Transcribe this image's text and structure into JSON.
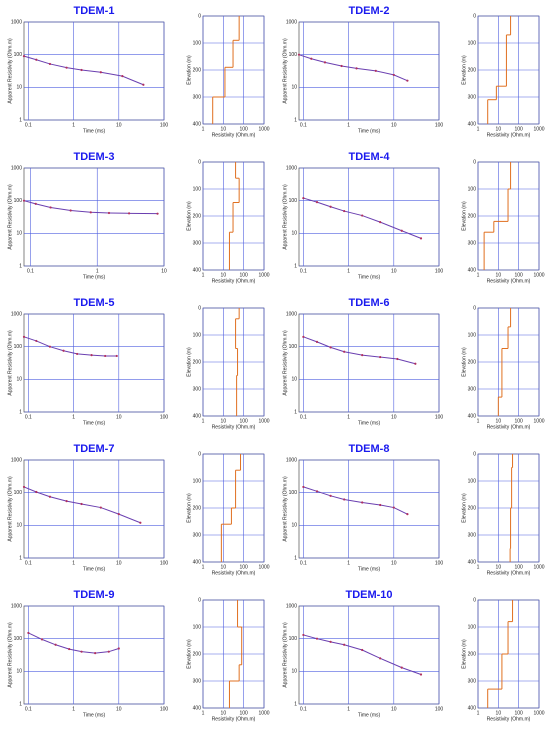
{
  "chart_data": [
    {
      "type": "sounding",
      "title": "TDEM-1",
      "xlabel": "Time (ms)",
      "ylabel": "Apparent Resistivity (Ohm.m)",
      "xscale": "log",
      "yscale": "log",
      "xlim": [
        0.08,
        100
      ],
      "xticks": [
        0.1,
        1,
        10,
        100
      ],
      "ylim": [
        1,
        1000
      ],
      "yticks": [
        1,
        10,
        100,
        1000
      ],
      "grid": true,
      "color": "#b03060",
      "x": [
        0.08,
        0.15,
        0.3,
        0.7,
        1.5,
        4,
        12,
        35
      ],
      "values": [
        90,
        70,
        52,
        40,
        34,
        29,
        22,
        12
      ]
    },
    {
      "type": "model",
      "xlabel": "Resistivity (Ohm.m)",
      "ylabel": "Elevation (m)",
      "xscale": "log",
      "yinvert": true,
      "xlim": [
        1,
        1000
      ],
      "xticks": [
        1,
        10,
        100,
        1000
      ],
      "ylim": [
        0,
        400
      ],
      "yticks": [
        0,
        100,
        200,
        300,
        400
      ],
      "grid": true,
      "color": "#e07020",
      "resistivity": [
        60,
        30,
        12,
        3
      ],
      "depths": [
        90,
        190,
        300
      ]
    },
    {
      "type": "sounding",
      "title": "TDEM-2",
      "xlabel": "Time (ms)",
      "ylabel": "Apparent Resistivity (Ohm.m)",
      "xscale": "log",
      "yscale": "log",
      "xlim": [
        0.08,
        100
      ],
      "xticks": [
        0.1,
        1,
        10,
        100
      ],
      "ylim": [
        1,
        1000
      ],
      "yticks": [
        1,
        10,
        100,
        1000
      ],
      "grid": true,
      "color": "#b03060",
      "x": [
        0.08,
        0.15,
        0.3,
        0.7,
        1.5,
        4,
        10,
        20
      ],
      "values": [
        100,
        75,
        58,
        45,
        38,
        32,
        24,
        16
      ]
    },
    {
      "type": "model",
      "xlabel": "Resistivity (Ohm.m)",
      "ylabel": "Elevation (m)",
      "xscale": "log",
      "yinvert": true,
      "xlim": [
        1,
        1000
      ],
      "xticks": [
        1,
        10,
        100,
        1000
      ],
      "ylim": [
        0,
        400
      ],
      "yticks": [
        0,
        100,
        200,
        300,
        400
      ],
      "grid": true,
      "color": "#e07020",
      "resistivity": [
        40,
        25,
        8,
        3
      ],
      "depths": [
        70,
        260,
        310
      ]
    },
    {
      "type": "sounding",
      "title": "TDEM-3",
      "xlabel": "Time (ms)",
      "ylabel": "Apparent Resistivity (Ohm.m)",
      "xscale": "log",
      "yscale": "log",
      "xlim": [
        0.08,
        10
      ],
      "xticks": [
        0.1,
        1,
        10
      ],
      "ylim": [
        1,
        1000
      ],
      "yticks": [
        1,
        10,
        100,
        1000
      ],
      "grid": true,
      "color": "#b03060",
      "x": [
        0.08,
        0.12,
        0.2,
        0.4,
        0.8,
        1.5,
        3,
        8
      ],
      "values": [
        100,
        80,
        62,
        50,
        44,
        42,
        41,
        40
      ]
    },
    {
      "type": "model",
      "xlabel": "Resistivity (Ohm.m)",
      "ylabel": "Elevation (m)",
      "xscale": "log",
      "yinvert": true,
      "xlim": [
        1,
        1000
      ],
      "xticks": [
        1,
        10,
        100,
        1000
      ],
      "ylim": [
        0,
        400
      ],
      "yticks": [
        0,
        100,
        200,
        300,
        400
      ],
      "grid": true,
      "color": "#e07020",
      "resistivity": [
        40,
        60,
        30,
        20
      ],
      "depths": [
        60,
        150,
        260
      ]
    },
    {
      "type": "sounding",
      "title": "TDEM-4",
      "xlabel": "Time (ms)",
      "ylabel": "Apparent Resistivity (Ohm.m)",
      "xscale": "log",
      "yscale": "log",
      "xlim": [
        0.08,
        100
      ],
      "xticks": [
        0.1,
        1,
        10,
        100
      ],
      "ylim": [
        1,
        1000
      ],
      "yticks": [
        1,
        10,
        100,
        1000
      ],
      "grid": true,
      "color": "#b03060",
      "x": [
        0.1,
        0.2,
        0.4,
        0.8,
        2,
        5,
        15,
        40
      ],
      "values": [
        120,
        90,
        65,
        48,
        35,
        22,
        12,
        7
      ]
    },
    {
      "type": "model",
      "xlabel": "Resistivity (Ohm.m)",
      "ylabel": "Elevation (m)",
      "xscale": "log",
      "yinvert": true,
      "xlim": [
        1,
        1000
      ],
      "xticks": [
        1,
        10,
        100,
        1000
      ],
      "ylim": [
        0,
        400
      ],
      "yticks": [
        0,
        100,
        200,
        300,
        400
      ],
      "grid": true,
      "color": "#e07020",
      "resistivity": [
        40,
        30,
        6,
        2
      ],
      "depths": [
        100,
        220,
        260
      ]
    },
    {
      "type": "sounding",
      "title": "TDEM-5",
      "xlabel": "Time (ms)",
      "ylabel": "Apparent Resistivity (Ohm.m)",
      "xscale": "log",
      "yscale": "log",
      "xlim": [
        0.08,
        100
      ],
      "xticks": [
        0.1,
        1,
        10,
        100
      ],
      "ylim": [
        1,
        1000
      ],
      "yticks": [
        1,
        10,
        100,
        1000
      ],
      "grid": true,
      "color": "#b03060",
      "x": [
        0.08,
        0.15,
        0.3,
        0.6,
        1.2,
        2.5,
        5,
        9
      ],
      "values": [
        200,
        150,
        100,
        75,
        60,
        55,
        52,
        52
      ]
    },
    {
      "type": "model",
      "xlabel": "Resistivity (Ohm.m)",
      "ylabel": "Elevation (m)",
      "xscale": "log",
      "yinvert": true,
      "xlim": [
        1,
        1000
      ],
      "xticks": [
        1,
        10,
        100,
        1000
      ],
      "ylim": [
        0,
        400
      ],
      "yticks": [
        0,
        100,
        200,
        300,
        400
      ],
      "grid": true,
      "color": "#e07020",
      "resistivity": [
        60,
        40,
        50,
        45
      ],
      "depths": [
        40,
        150,
        250
      ]
    },
    {
      "type": "sounding",
      "title": "TDEM-6",
      "xlabel": "Time (ms)",
      "ylabel": "Apparent Resistivity (Ohm.m)",
      "xscale": "log",
      "yscale": "log",
      "xlim": [
        0.08,
        100
      ],
      "xticks": [
        0.1,
        1,
        10,
        100
      ],
      "ylim": [
        1,
        1000
      ],
      "yticks": [
        1,
        10,
        100,
        1000
      ],
      "grid": true,
      "color": "#b03060",
      "x": [
        0.1,
        0.2,
        0.4,
        0.8,
        2,
        5,
        12,
        30
      ],
      "values": [
        200,
        140,
        95,
        70,
        55,
        48,
        42,
        30
      ]
    },
    {
      "type": "model",
      "xlabel": "Resistivity (Ohm.m)",
      "ylabel": "Elevation (m)",
      "xscale": "log",
      "yinvert": true,
      "xlim": [
        1,
        1000
      ],
      "xticks": [
        1,
        10,
        100,
        1000
      ],
      "ylim": [
        0,
        400
      ],
      "yticks": [
        0,
        100,
        200,
        300,
        400
      ],
      "grid": true,
      "color": "#e07020",
      "resistivity": [
        40,
        30,
        15,
        10
      ],
      "depths": [
        70,
        150,
        330
      ]
    },
    {
      "type": "sounding",
      "title": "TDEM-7",
      "xlabel": "Time (ms)",
      "ylabel": "Apparent Resistivity (Ohm.m)",
      "xscale": "log",
      "yscale": "log",
      "xlim": [
        0.08,
        100
      ],
      "xticks": [
        0.1,
        1,
        10,
        100
      ],
      "ylim": [
        1,
        1000
      ],
      "yticks": [
        1,
        10,
        100,
        1000
      ],
      "grid": true,
      "color": "#b03060",
      "x": [
        0.08,
        0.15,
        0.3,
        0.7,
        1.5,
        4,
        10,
        30
      ],
      "values": [
        150,
        105,
        75,
        55,
        45,
        35,
        22,
        12
      ]
    },
    {
      "type": "model",
      "xlabel": "Resistivity (Ohm.m)",
      "ylabel": "Elevation (m)",
      "xscale": "log",
      "yinvert": true,
      "xlim": [
        1,
        1000
      ],
      "xticks": [
        1,
        10,
        100,
        1000
      ],
      "ylim": [
        0,
        400
      ],
      "yticks": [
        0,
        100,
        200,
        300,
        400
      ],
      "grid": true,
      "color": "#e07020",
      "resistivity": [
        70,
        40,
        25,
        8
      ],
      "depths": [
        60,
        200,
        260
      ]
    },
    {
      "type": "sounding",
      "title": "TDEM-8",
      "xlabel": "Time (ms)",
      "ylabel": "Apparent Resistivity (Ohm.m)",
      "xscale": "log",
      "yscale": "log",
      "xlim": [
        0.08,
        100
      ],
      "xticks": [
        0.1,
        1,
        10,
        100
      ],
      "ylim": [
        1,
        1000
      ],
      "yticks": [
        1,
        10,
        100,
        1000
      ],
      "grid": true,
      "color": "#b03060",
      "x": [
        0.1,
        0.2,
        0.4,
        0.8,
        2,
        5,
        10,
        20
      ],
      "values": [
        150,
        110,
        80,
        62,
        50,
        42,
        35,
        22
      ]
    },
    {
      "type": "model",
      "xlabel": "Resistivity (Ohm.m)",
      "ylabel": "Elevation (m)",
      "xscale": "log",
      "yinvert": true,
      "xlim": [
        1,
        1000
      ],
      "xticks": [
        1,
        10,
        100,
        1000
      ],
      "ylim": [
        0,
        400
      ],
      "yticks": [
        0,
        100,
        200,
        300,
        400
      ],
      "grid": true,
      "color": "#e07020",
      "resistivity": [
        50,
        45,
        40,
        38
      ],
      "depths": [
        50,
        200,
        350
      ]
    },
    {
      "type": "sounding",
      "title": "TDEM-9",
      "xlabel": "Time (ms)",
      "ylabel": "Apparent Resistivity (Ohm.m)",
      "xscale": "log",
      "yscale": "log",
      "xlim": [
        0.08,
        100
      ],
      "xticks": [
        0.1,
        1,
        10,
        100
      ],
      "ylim": [
        1,
        1000
      ],
      "yticks": [
        1,
        10,
        100,
        1000
      ],
      "grid": true,
      "color": "#b03060",
      "x": [
        0.1,
        0.2,
        0.4,
        0.8,
        1.5,
        3,
        6,
        10
      ],
      "values": [
        150,
        95,
        65,
        48,
        40,
        36,
        40,
        50
      ]
    },
    {
      "type": "model",
      "xlabel": "Resistivity (Ohm.m)",
      "ylabel": "Elevation (m)",
      "xscale": "log",
      "yinvert": true,
      "xlim": [
        1,
        1000
      ],
      "xticks": [
        1,
        10,
        100,
        1000
      ],
      "ylim": [
        0,
        400
      ],
      "yticks": [
        0,
        100,
        200,
        300,
        400
      ],
      "grid": true,
      "color": "#e07020",
      "resistivity": [
        50,
        80,
        60,
        20
      ],
      "depths": [
        100,
        240,
        300
      ]
    },
    {
      "type": "sounding",
      "title": "TDEM-10",
      "xlabel": "Time (ms)",
      "ylabel": "Apparent Resistivity (Ohm.m)",
      "xscale": "log",
      "yscale": "log",
      "xlim": [
        0.08,
        100
      ],
      "xticks": [
        0.1,
        1,
        10,
        100
      ],
      "ylim": [
        1,
        1000
      ],
      "yticks": [
        1,
        10,
        100,
        1000
      ],
      "grid": true,
      "color": "#b03060",
      "x": [
        0.1,
        0.2,
        0.4,
        0.8,
        2,
        5,
        15,
        40
      ],
      "values": [
        130,
        100,
        80,
        65,
        45,
        25,
        13,
        8
      ]
    },
    {
      "type": "model",
      "xlabel": "Resistivity (Ohm.m)",
      "ylabel": "Elevation (m)",
      "xscale": "log",
      "yinvert": true,
      "xlim": [
        1,
        1000
      ],
      "xticks": [
        1,
        10,
        100,
        1000
      ],
      "ylim": [
        0,
        400
      ],
      "yticks": [
        0,
        100,
        200,
        300,
        400
      ],
      "grid": true,
      "color": "#e07020",
      "resistivity": [
        50,
        30,
        15,
        3
      ],
      "depths": [
        80,
        200,
        330
      ]
    }
  ]
}
